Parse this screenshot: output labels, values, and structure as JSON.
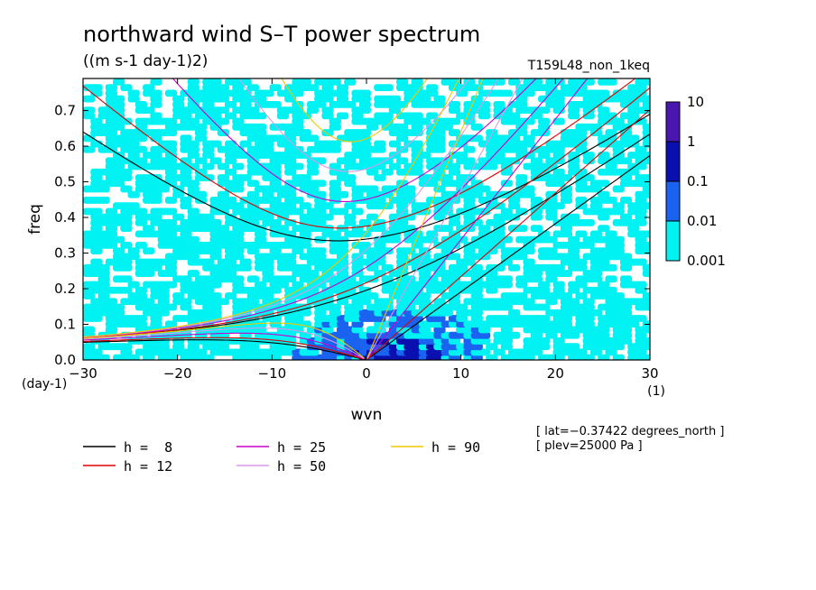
{
  "chart_data": {
    "type": "heatmap",
    "title": "northward wind S–T power spectrum",
    "subtitle": "((m s-1 day-1)2)",
    "run_label": "T159L48_non_1keq",
    "xlabel": "wvn",
    "ylabel": "freq",
    "x_unit": "(1)",
    "y_unit": "(day-1)",
    "xlim": [
      -30,
      30
    ],
    "ylim": [
      0,
      0.79
    ],
    "xticks": [
      "−30",
      "−20",
      "−10",
      "0",
      "10",
      "20",
      "30"
    ],
    "xtick_values": [
      -30,
      -20,
      -10,
      0,
      10,
      20,
      30
    ],
    "yticks": [
      "0.0",
      "0.1",
      "0.2",
      "0.3",
      "0.4",
      "0.5",
      "0.6",
      "0.7"
    ],
    "ytick_values": [
      0,
      0.1,
      0.2,
      0.3,
      0.4,
      0.5,
      0.6,
      0.7
    ],
    "colorbar": {
      "levels": [
        "10",
        "1",
        "0.1",
        "0.01",
        "0.001"
      ],
      "colors": [
        "#4a16b0",
        "#0a10b0",
        "#1a62f0",
        "#00f2f2"
      ]
    },
    "dispersion_curves": [
      {
        "name": "h =  8",
        "color": "#000000",
        "h": 8
      },
      {
        "name": "h = 12",
        "color": "#e00000",
        "h": 12
      },
      {
        "name": "h = 25",
        "color": "#cc00cc",
        "h": 25
      },
      {
        "name": "h = 50",
        "color": "#d99ae6",
        "h": 50
      },
      {
        "name": "h = 90",
        "color": "#f0c800",
        "h": 90
      }
    ],
    "annotations": [
      "[ lat=−0.37422 degrees_north ]",
      "[ plev=25000 Pa ]"
    ]
  }
}
